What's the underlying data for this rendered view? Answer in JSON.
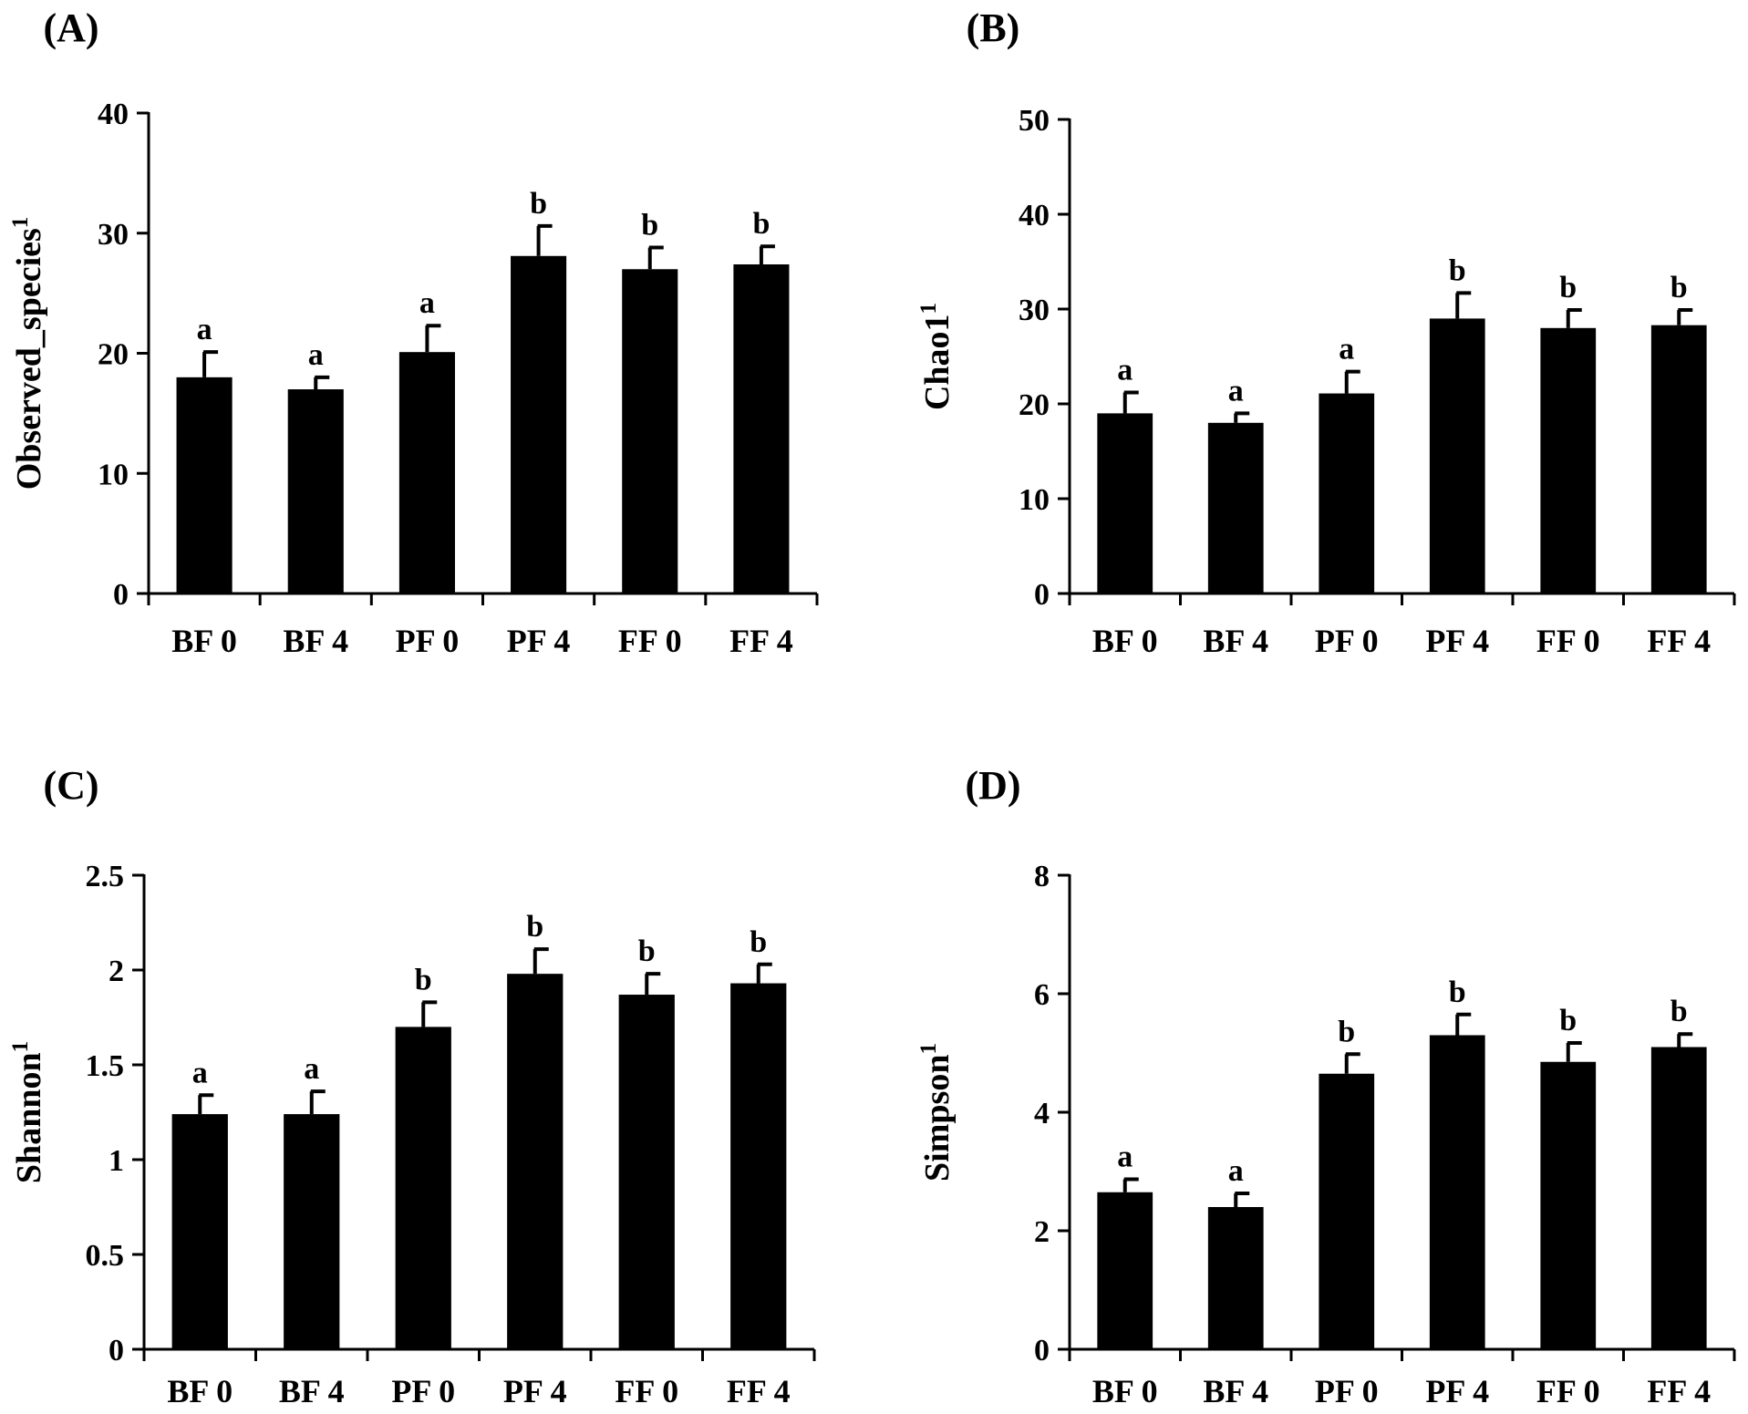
{
  "chart_data": [
    {
      "panel_label": "(A)",
      "type": "bar",
      "categories": [
        "BF 0",
        "BF 4",
        "PF 0",
        "PF 4",
        "FF 0",
        "FF 4"
      ],
      "values": [
        18,
        17,
        20.1,
        28.1,
        27,
        27.4
      ],
      "errors": [
        2.1,
        1.0,
        2.2,
        2.5,
        1.8,
        1.5
      ],
      "significance": [
        "a",
        "a",
        "a",
        "b",
        "b",
        "b"
      ],
      "ylabel": "Observed_species",
      "ylabel_superscript": "1",
      "xlabel": "",
      "ylim": [
        0,
        40
      ],
      "yticks": [
        0,
        10,
        20,
        30,
        40
      ],
      "ytick_labels": [
        "0",
        "10",
        "20",
        "30",
        "40"
      ],
      "bar_color": "#000000"
    },
    {
      "panel_label": "(B)",
      "type": "bar",
      "categories": [
        "BF 0",
        "BF 4",
        "PF 0",
        "PF 4",
        "FF 0",
        "FF 4"
      ],
      "values": [
        19,
        18,
        21.1,
        29,
        28,
        28.3
      ],
      "errors": [
        2.2,
        1.0,
        2.3,
        2.7,
        1.9,
        1.6
      ],
      "significance": [
        "a",
        "a",
        "a",
        "b",
        "b",
        "b"
      ],
      "ylabel": "Chao1",
      "ylabel_superscript": "1",
      "xlabel": "",
      "ylim": [
        0,
        50
      ],
      "yticks": [
        0,
        10,
        20,
        30,
        40,
        50
      ],
      "ytick_labels": [
        "0",
        "10",
        "20",
        "30",
        "40",
        "50"
      ],
      "bar_color": "#000000"
    },
    {
      "panel_label": "(C)",
      "type": "bar",
      "categories": [
        "BF 0",
        "BF 4",
        "PF 0",
        "PF 4",
        "FF 0",
        "FF 4"
      ],
      "values": [
        1.24,
        1.24,
        1.7,
        1.98,
        1.87,
        1.93
      ],
      "errors": [
        0.1,
        0.12,
        0.13,
        0.13,
        0.11,
        0.1
      ],
      "significance": [
        "a",
        "a",
        "b",
        "b",
        "b",
        "b"
      ],
      "ylabel": "Shannon",
      "ylabel_superscript": "1",
      "xlabel": "",
      "ylim": [
        0,
        2.5
      ],
      "yticks": [
        0,
        0.5,
        1,
        1.5,
        2,
        2.5
      ],
      "ytick_labels": [
        "0",
        "0.5",
        "1",
        "1.5",
        "2",
        "2.5"
      ],
      "bar_color": "#000000"
    },
    {
      "panel_label": "(D)",
      "type": "bar",
      "categories": [
        "BF 0",
        "BF 4",
        "PF 0",
        "PF 4",
        "FF 0",
        "FF 4"
      ],
      "values": [
        2.65,
        2.4,
        4.65,
        5.3,
        4.85,
        5.1
      ],
      "errors": [
        0.22,
        0.23,
        0.33,
        0.35,
        0.32,
        0.22
      ],
      "significance": [
        "a",
        "a",
        "b",
        "b",
        "b",
        "b"
      ],
      "ylabel": "Simpson",
      "ylabel_superscript": "1",
      "xlabel": "",
      "ylim": [
        0,
        8
      ],
      "yticks": [
        0,
        2,
        4,
        6,
        8
      ],
      "ytick_labels": [
        "0",
        "2",
        "4",
        "6",
        "8"
      ],
      "bar_color": "#000000"
    }
  ]
}
